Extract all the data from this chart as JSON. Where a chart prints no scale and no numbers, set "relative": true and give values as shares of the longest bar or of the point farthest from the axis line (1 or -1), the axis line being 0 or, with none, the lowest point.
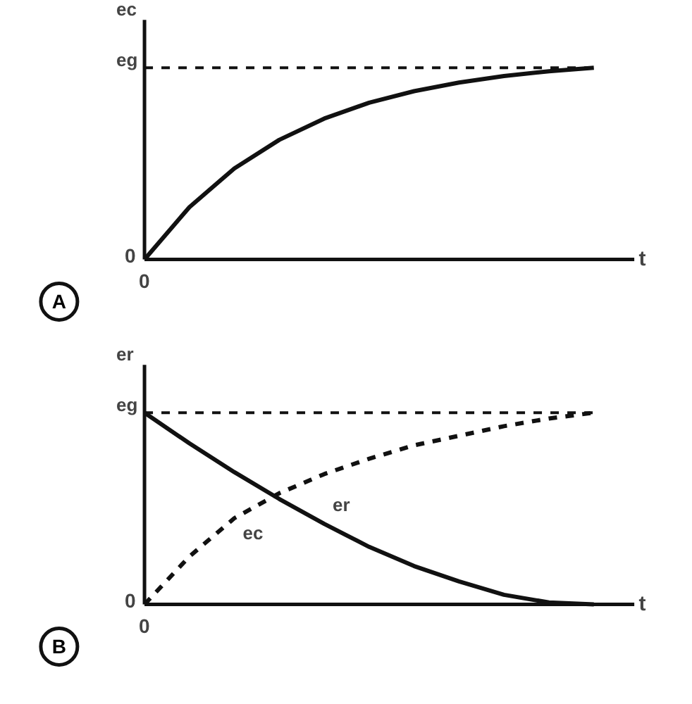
{
  "chart_data": [
    {
      "type": "line",
      "relative": true,
      "ylabel": "ec",
      "xlabel": "t",
      "grid": false,
      "line_style": "solid",
      "color": "#111111",
      "categories": [
        null,
        null,
        null,
        null,
        null,
        null,
        null,
        null,
        null,
        null,
        null
      ],
      "values": [
        0,
        0.273,
        0.475,
        0.624,
        0.735,
        0.818,
        0.878,
        0.923,
        0.957,
        0.982,
        1.0
      ],
      "ref_lines": [
        {
          "axis": "y",
          "value": 1.0,
          "label": "eg",
          "line_style": "dashed"
        }
      ],
      "annotations": [
        "0",
        "0",
        "A"
      ]
    },
    {
      "type": "line",
      "relative": true,
      "ylabel": "er",
      "xlabel": "t",
      "grid": false,
      "categories": [
        null,
        null,
        null,
        null,
        null,
        null,
        null,
        null,
        null,
        null,
        null
      ],
      "series": [
        {
          "name": "ec",
          "color": "#111111",
          "line_style": "dashed",
          "values": [
            0,
            0.25,
            0.45,
            0.58,
            0.68,
            0.76,
            0.83,
            0.88,
            0.93,
            0.97,
            1.0
          ]
        },
        {
          "name": "er",
          "color": "#111111",
          "line_style": "solid",
          "values": [
            1.0,
            0.84,
            0.69,
            0.55,
            0.42,
            0.3,
            0.2,
            0.12,
            0.05,
            0.01,
            0.0
          ]
        }
      ],
      "ref_lines": [
        {
          "axis": "y",
          "value": 1.0,
          "label": "eg",
          "line_style": "dashed"
        }
      ],
      "annotations": [
        "0",
        "0",
        "B"
      ]
    }
  ]
}
